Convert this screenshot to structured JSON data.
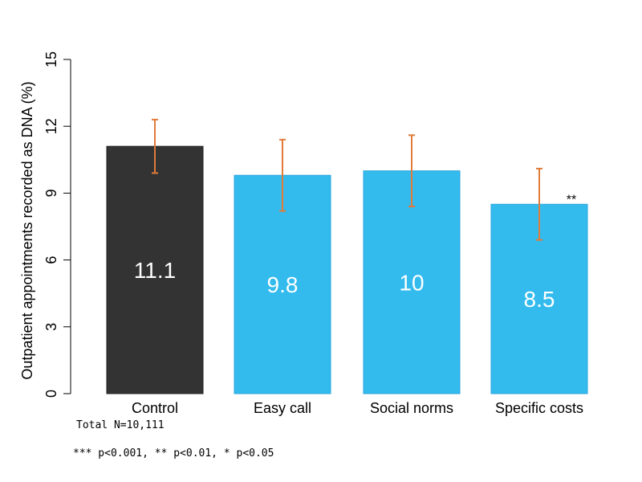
{
  "chart_data": {
    "type": "bar",
    "title": "",
    "xlabel": "",
    "ylabel": "Outpatient appointments recorded as DNA (%)",
    "ylim": [
      0,
      15
    ],
    "yticks": [
      0,
      3,
      6,
      9,
      12,
      15
    ],
    "categories": [
      "Control",
      "Easy call",
      "Social norms",
      "Specific costs"
    ],
    "values": [
      11.1,
      9.8,
      10,
      8.5
    ],
    "value_labels": [
      "11.1",
      "9.8",
      "10",
      "8.5"
    ],
    "error_low": [
      9.9,
      8.2,
      8.4,
      6.9
    ],
    "error_high": [
      12.3,
      11.4,
      11.6,
      10.1
    ],
    "significance": [
      "",
      "",
      "",
      "**"
    ],
    "bar_colors": [
      "#333333",
      "#33bbee",
      "#33bbee",
      "#33bbee"
    ],
    "error_color": "#e07b39",
    "grid": false,
    "legend": "none"
  },
  "footnotes": {
    "total": "Total N=10,111",
    "pvalues": "*** p<0.001, ** p<0.01, * p<0.05"
  }
}
